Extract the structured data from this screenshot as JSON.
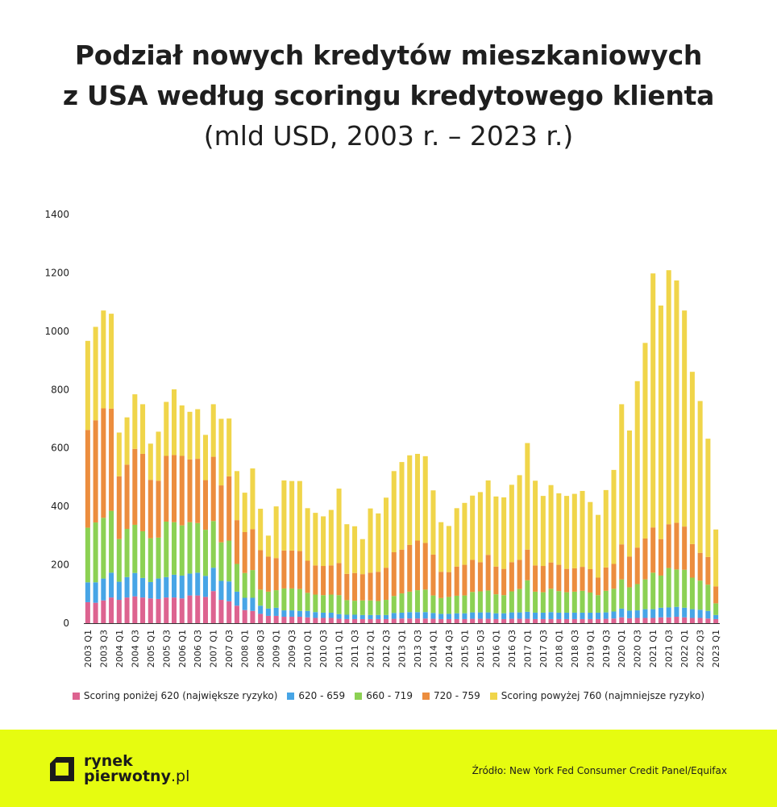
{
  "header": {
    "title_line1": "Podział nowych kredytów mieszkaniowych",
    "title_line2": "z USA według scoringu kredytowego klienta",
    "subtitle": "(mld USD, 2003 r. – 2023 r.)"
  },
  "footer": {
    "logo_line1": "rynek",
    "logo_line2": "pierwotny",
    "logo_suffix": ".pl",
    "source": "Źródło: New York Fed Consumer Credit Panel/Equifax"
  },
  "colors": {
    "footer_bg": "#e6fc10",
    "series": [
      "#dd6390",
      "#47a5e6",
      "#8cd153",
      "#ec8d3e",
      "#f0d54a"
    ]
  },
  "chart_data": {
    "type": "bar",
    "stacked": true,
    "title": "Podział nowych kredytów mieszkaniowych z USA według scoringu kredytowego klienta",
    "subtitle": "(mld USD, 2003 r. – 2023 r.)",
    "xlabel": "",
    "ylabel": "",
    "ylim": [
      0,
      1400
    ],
    "yticks": [
      0,
      200,
      400,
      600,
      800,
      1000,
      1200,
      1400
    ],
    "grid": false,
    "legend_position": "bottom",
    "x_tick_labels": [
      "2003 Q1",
      "2003 Q3",
      "2004 Q1",
      "2004 Q3",
      "2005 Q1",
      "2005 Q3",
      "2006 Q1",
      "2006 Q3",
      "2007 Q1",
      "2007 Q3",
      "2008 Q1",
      "2008 Q3",
      "2009 Q1",
      "2009 Q3",
      "2010 Q1",
      "2010 Q3",
      "2011 Q1",
      "2011 Q3",
      "2012 Q1",
      "2012 Q3",
      "2013 Q1",
      "2013 Q3",
      "2014 Q1",
      "2014 Q3",
      "2015 Q1",
      "2015 Q3",
      "2016 Q1",
      "2016 Q3",
      "2017 Q1",
      "2017 Q3",
      "2018 Q1",
      "2018 Q3",
      "2019 Q1",
      "2019 Q3",
      "2020 Q1",
      "2020 Q3",
      "2021 Q1",
      "2021 Q3",
      "2022 Q1",
      "2022 Q3",
      "2023 Q1"
    ],
    "categories": [
      "2003 Q1",
      "2003 Q2",
      "2003 Q3",
      "2003 Q4",
      "2004 Q1",
      "2004 Q2",
      "2004 Q3",
      "2004 Q4",
      "2005 Q1",
      "2005 Q2",
      "2005 Q3",
      "2005 Q4",
      "2006 Q1",
      "2006 Q2",
      "2006 Q3",
      "2006 Q4",
      "2007 Q1",
      "2007 Q2",
      "2007 Q3",
      "2007 Q4",
      "2008 Q1",
      "2008 Q2",
      "2008 Q3",
      "2008 Q4",
      "2009 Q1",
      "2009 Q2",
      "2009 Q3",
      "2009 Q4",
      "2010 Q1",
      "2010 Q2",
      "2010 Q3",
      "2010 Q4",
      "2011 Q1",
      "2011 Q2",
      "2011 Q3",
      "2011 Q4",
      "2012 Q1",
      "2012 Q2",
      "2012 Q3",
      "2012 Q4",
      "2013 Q1",
      "2013 Q2",
      "2013 Q3",
      "2013 Q4",
      "2014 Q1",
      "2014 Q2",
      "2014 Q3",
      "2014 Q4",
      "2015 Q1",
      "2015 Q2",
      "2015 Q3",
      "2015 Q4",
      "2016 Q1",
      "2016 Q2",
      "2016 Q3",
      "2016 Q4",
      "2017 Q1",
      "2017 Q2",
      "2017 Q3",
      "2017 Q4",
      "2018 Q1",
      "2018 Q2",
      "2018 Q3",
      "2018 Q4",
      "2019 Q1",
      "2019 Q2",
      "2019 Q3",
      "2019 Q4",
      "2020 Q1",
      "2020 Q2",
      "2020 Q3",
      "2020 Q4",
      "2021 Q1",
      "2021 Q2",
      "2021 Q3",
      "2021 Q4",
      "2022 Q1",
      "2022 Q2",
      "2022 Q3",
      "2022 Q4",
      "2023 Q1"
    ],
    "series": [
      {
        "name": "Scoring poniżej 620 (największe ryzyko)",
        "values": [
          72,
          70,
          78,
          88,
          80,
          88,
          92,
          88,
          85,
          83,
          88,
          88,
          85,
          95,
          95,
          90,
          110,
          80,
          75,
          60,
          45,
          42,
          32,
          25,
          25,
          22,
          22,
          22,
          20,
          18,
          18,
          18,
          15,
          14,
          14,
          14,
          14,
          14,
          14,
          15,
          16,
          16,
          16,
          16,
          15,
          14,
          14,
          14,
          14,
          15,
          15,
          15,
          14,
          14,
          15,
          15,
          15,
          14,
          14,
          14,
          14,
          14,
          14,
          14,
          14,
          14,
          15,
          16,
          20,
          17,
          18,
          18,
          18,
          20,
          20,
          22,
          20,
          18,
          18,
          16,
          14
        ]
      },
      {
        "name": "620 - 659",
        "values": [
          68,
          70,
          75,
          85,
          62,
          70,
          80,
          67,
          56,
          70,
          70,
          78,
          78,
          75,
          78,
          72,
          80,
          65,
          68,
          48,
          42,
          45,
          28,
          25,
          28,
          22,
          22,
          20,
          22,
          20,
          18,
          18,
          16,
          15,
          15,
          14,
          14,
          14,
          14,
          20,
          20,
          22,
          22,
          22,
          20,
          18,
          18,
          20,
          20,
          22,
          22,
          22,
          20,
          20,
          22,
          22,
          24,
          22,
          22,
          24,
          22,
          22,
          22,
          22,
          22,
          22,
          22,
          24,
          30,
          26,
          26,
          30,
          30,
          33,
          34,
          34,
          33,
          30,
          28,
          26,
          14
        ]
      },
      {
        "name": "660 - 719",
        "values": [
          187,
          205,
          208,
          212,
          146,
          165,
          165,
          160,
          150,
          140,
          190,
          180,
          172,
          176,
          170,
          158,
          160,
          132,
          140,
          95,
          85,
          95,
          55,
          58,
          60,
          75,
          75,
          75,
          62,
          60,
          60,
          62,
          65,
          50,
          48,
          50,
          50,
          48,
          52,
          58,
          66,
          70,
          75,
          77,
          60,
          54,
          58,
          60,
          61,
          70,
          72,
          75,
          65,
          62,
          72,
          80,
          108,
          72,
          70,
          80,
          74,
          70,
          72,
          75,
          69,
          60,
          74,
          78,
          100,
          80,
          90,
          102,
          125,
          110,
          135,
          128,
          130,
          108,
          100,
          90,
          40
        ]
      },
      {
        "name": "720 - 759",
        "values": [
          335,
          350,
          375,
          350,
          215,
          220,
          260,
          265,
          200,
          195,
          225,
          230,
          238,
          215,
          220,
          170,
          220,
          195,
          220,
          150,
          140,
          140,
          135,
          120,
          110,
          130,
          130,
          130,
          110,
          100,
          100,
          100,
          110,
          90,
          95,
          90,
          95,
          100,
          110,
          150,
          150,
          160,
          170,
          160,
          140,
          90,
          85,
          100,
          105,
          110,
          100,
          122,
          95,
          90,
          100,
          100,
          105,
          90,
          90,
          90,
          90,
          80,
          80,
          82,
          80,
          60,
          80,
          85,
          120,
          105,
          125,
          140,
          155,
          125,
          150,
          160,
          148,
          115,
          95,
          95,
          58
        ]
      },
      {
        "name": "Scoring powyżej 760 (najmniejsze ryzyko)",
        "values": [
          305,
          320,
          335,
          325,
          150,
          162,
          187,
          170,
          124,
          168,
          185,
          225,
          173,
          163,
          170,
          155,
          180,
          228,
          198,
          168,
          135,
          208,
          142,
          72,
          177,
          240,
          238,
          240,
          180,
          180,
          170,
          190,
          255,
          170,
          160,
          120,
          220,
          200,
          240,
          278,
          300,
          307,
          297,
          297,
          220,
          170,
          158,
          200,
          212,
          220,
          240,
          255,
          240,
          245,
          265,
          290,
          365,
          290,
          240,
          265,
          245,
          250,
          255,
          260,
          230,
          215,
          265,
          322,
          480,
          432,
          570,
          670,
          870,
          800,
          870,
          830,
          740,
          590,
          520,
          405,
          195
        ]
      }
    ]
  }
}
